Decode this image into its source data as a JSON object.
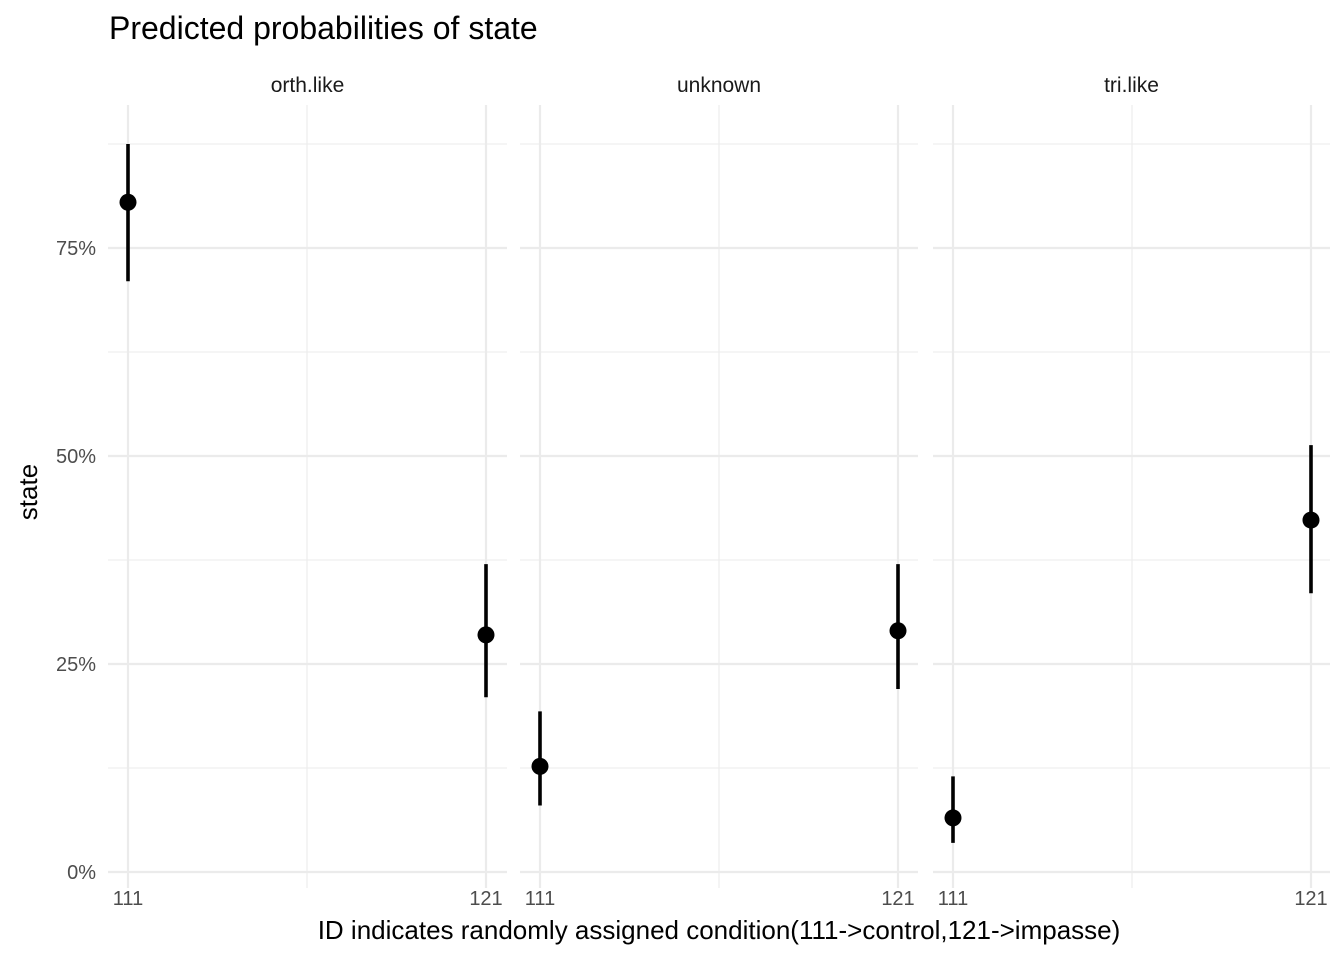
{
  "chart_data": {
    "type": "scatter",
    "title": "Predicted probabilities of state",
    "xlabel": "ID indicates randomly assigned condition(111->control,121->impasse)",
    "ylabel": "state",
    "ylim": [
      0,
      0.92
    ],
    "y_ticks": [
      0,
      0.25,
      0.5,
      0.75
    ],
    "y_tick_labels": [
      "0%",
      "25%",
      "50%",
      "75%"
    ],
    "categories": [
      "111",
      "121"
    ],
    "panels": [
      {
        "name": "orth.like",
        "points": [
          {
            "x": "111",
            "y": 0.805,
            "lower": 0.71,
            "upper": 0.875
          },
          {
            "x": "121",
            "y": 0.285,
            "lower": 0.21,
            "upper": 0.37
          }
        ]
      },
      {
        "name": "unknown",
        "points": [
          {
            "x": "111",
            "y": 0.127,
            "lower": 0.08,
            "upper": 0.193
          },
          {
            "x": "121",
            "y": 0.29,
            "lower": 0.22,
            "upper": 0.37
          }
        ]
      },
      {
        "name": "tri.like",
        "points": [
          {
            "x": "111",
            "y": 0.065,
            "lower": 0.035,
            "upper": 0.115
          },
          {
            "x": "121",
            "y": 0.423,
            "lower": 0.335,
            "upper": 0.513
          }
        ]
      }
    ],
    "grid": true,
    "legend": "none"
  }
}
